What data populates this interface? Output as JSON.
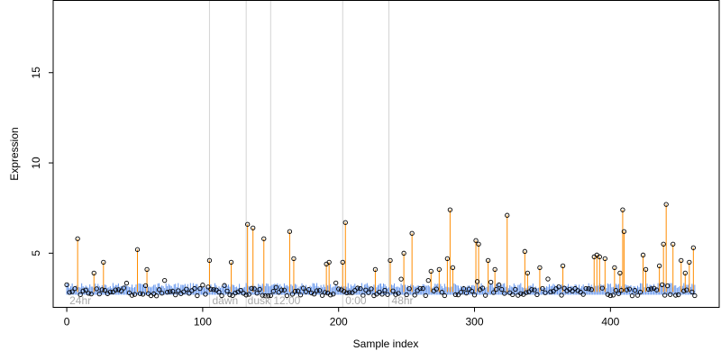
{
  "chart_data": {
    "type": "scatter",
    "xlabel": "Sample index",
    "ylabel": "Expression",
    "xlim": [
      -10,
      480
    ],
    "ylim": [
      2,
      19
    ],
    "x_ticks": [
      0,
      100,
      200,
      300,
      400
    ],
    "y_ticks": [
      5,
      10,
      15
    ],
    "grid": false,
    "baseline": 2.85,
    "band": {
      "low": 2.7,
      "high": 3.35
    },
    "vlines": [
      105,
      132,
      150,
      203,
      237
    ],
    "region_labels": [
      {
        "x": 2,
        "text": "24hr"
      },
      {
        "x": 107,
        "text": "dawn"
      },
      {
        "x": 133,
        "text": "dusk"
      },
      {
        "x": 152,
        "text": "12:00"
      },
      {
        "x": 205,
        "text": "0:00"
      },
      {
        "x": 239,
        "text": "48hr"
      }
    ],
    "colors": {
      "stem": "#FF8C00",
      "band": "#6495ED",
      "point_stroke": "#000000",
      "vline": "#D3D3D3",
      "region_label": "#A9A9A9"
    },
    "highlights": [
      {
        "x": 8,
        "y": 5.8
      },
      {
        "x": 20,
        "y": 3.9
      },
      {
        "x": 27,
        "y": 4.5
      },
      {
        "x": 52,
        "y": 5.2
      },
      {
        "x": 59,
        "y": 4.1
      },
      {
        "x": 105,
        "y": 4.6
      },
      {
        "x": 121,
        "y": 4.5
      },
      {
        "x": 133,
        "y": 6.6
      },
      {
        "x": 137,
        "y": 6.4
      },
      {
        "x": 145,
        "y": 5.8
      },
      {
        "x": 164,
        "y": 6.2
      },
      {
        "x": 167,
        "y": 4.7
      },
      {
        "x": 191,
        "y": 4.4
      },
      {
        "x": 193,
        "y": 4.5
      },
      {
        "x": 203,
        "y": 4.5
      },
      {
        "x": 205,
        "y": 6.7
      },
      {
        "x": 227,
        "y": 4.1
      },
      {
        "x": 238,
        "y": 4.6
      },
      {
        "x": 248,
        "y": 5.0
      },
      {
        "x": 254,
        "y": 6.1
      },
      {
        "x": 268,
        "y": 4.0
      },
      {
        "x": 274,
        "y": 4.1
      },
      {
        "x": 280,
        "y": 4.7
      },
      {
        "x": 282,
        "y": 7.4
      },
      {
        "x": 284,
        "y": 4.2
      },
      {
        "x": 301,
        "y": 5.7
      },
      {
        "x": 303,
        "y": 5.5
      },
      {
        "x": 310,
        "y": 4.6
      },
      {
        "x": 315,
        "y": 4.1
      },
      {
        "x": 324,
        "y": 7.1
      },
      {
        "x": 337,
        "y": 5.1
      },
      {
        "x": 339,
        "y": 3.9
      },
      {
        "x": 348,
        "y": 4.2
      },
      {
        "x": 365,
        "y": 4.3
      },
      {
        "x": 388,
        "y": 4.8
      },
      {
        "x": 390,
        "y": 4.9
      },
      {
        "x": 392,
        "y": 4.8
      },
      {
        "x": 396,
        "y": 4.7
      },
      {
        "x": 403,
        "y": 4.2
      },
      {
        "x": 407,
        "y": 3.9
      },
      {
        "x": 409,
        "y": 7.4
      },
      {
        "x": 410,
        "y": 6.2
      },
      {
        "x": 424,
        "y": 4.9
      },
      {
        "x": 426,
        "y": 4.1
      },
      {
        "x": 436,
        "y": 4.3
      },
      {
        "x": 439,
        "y": 5.5
      },
      {
        "x": 441,
        "y": 7.7
      },
      {
        "x": 446,
        "y": 5.5
      },
      {
        "x": 452,
        "y": 4.6
      },
      {
        "x": 455,
        "y": 3.9
      },
      {
        "x": 458,
        "y": 4.5
      },
      {
        "x": 461,
        "y": 5.3
      }
    ]
  }
}
